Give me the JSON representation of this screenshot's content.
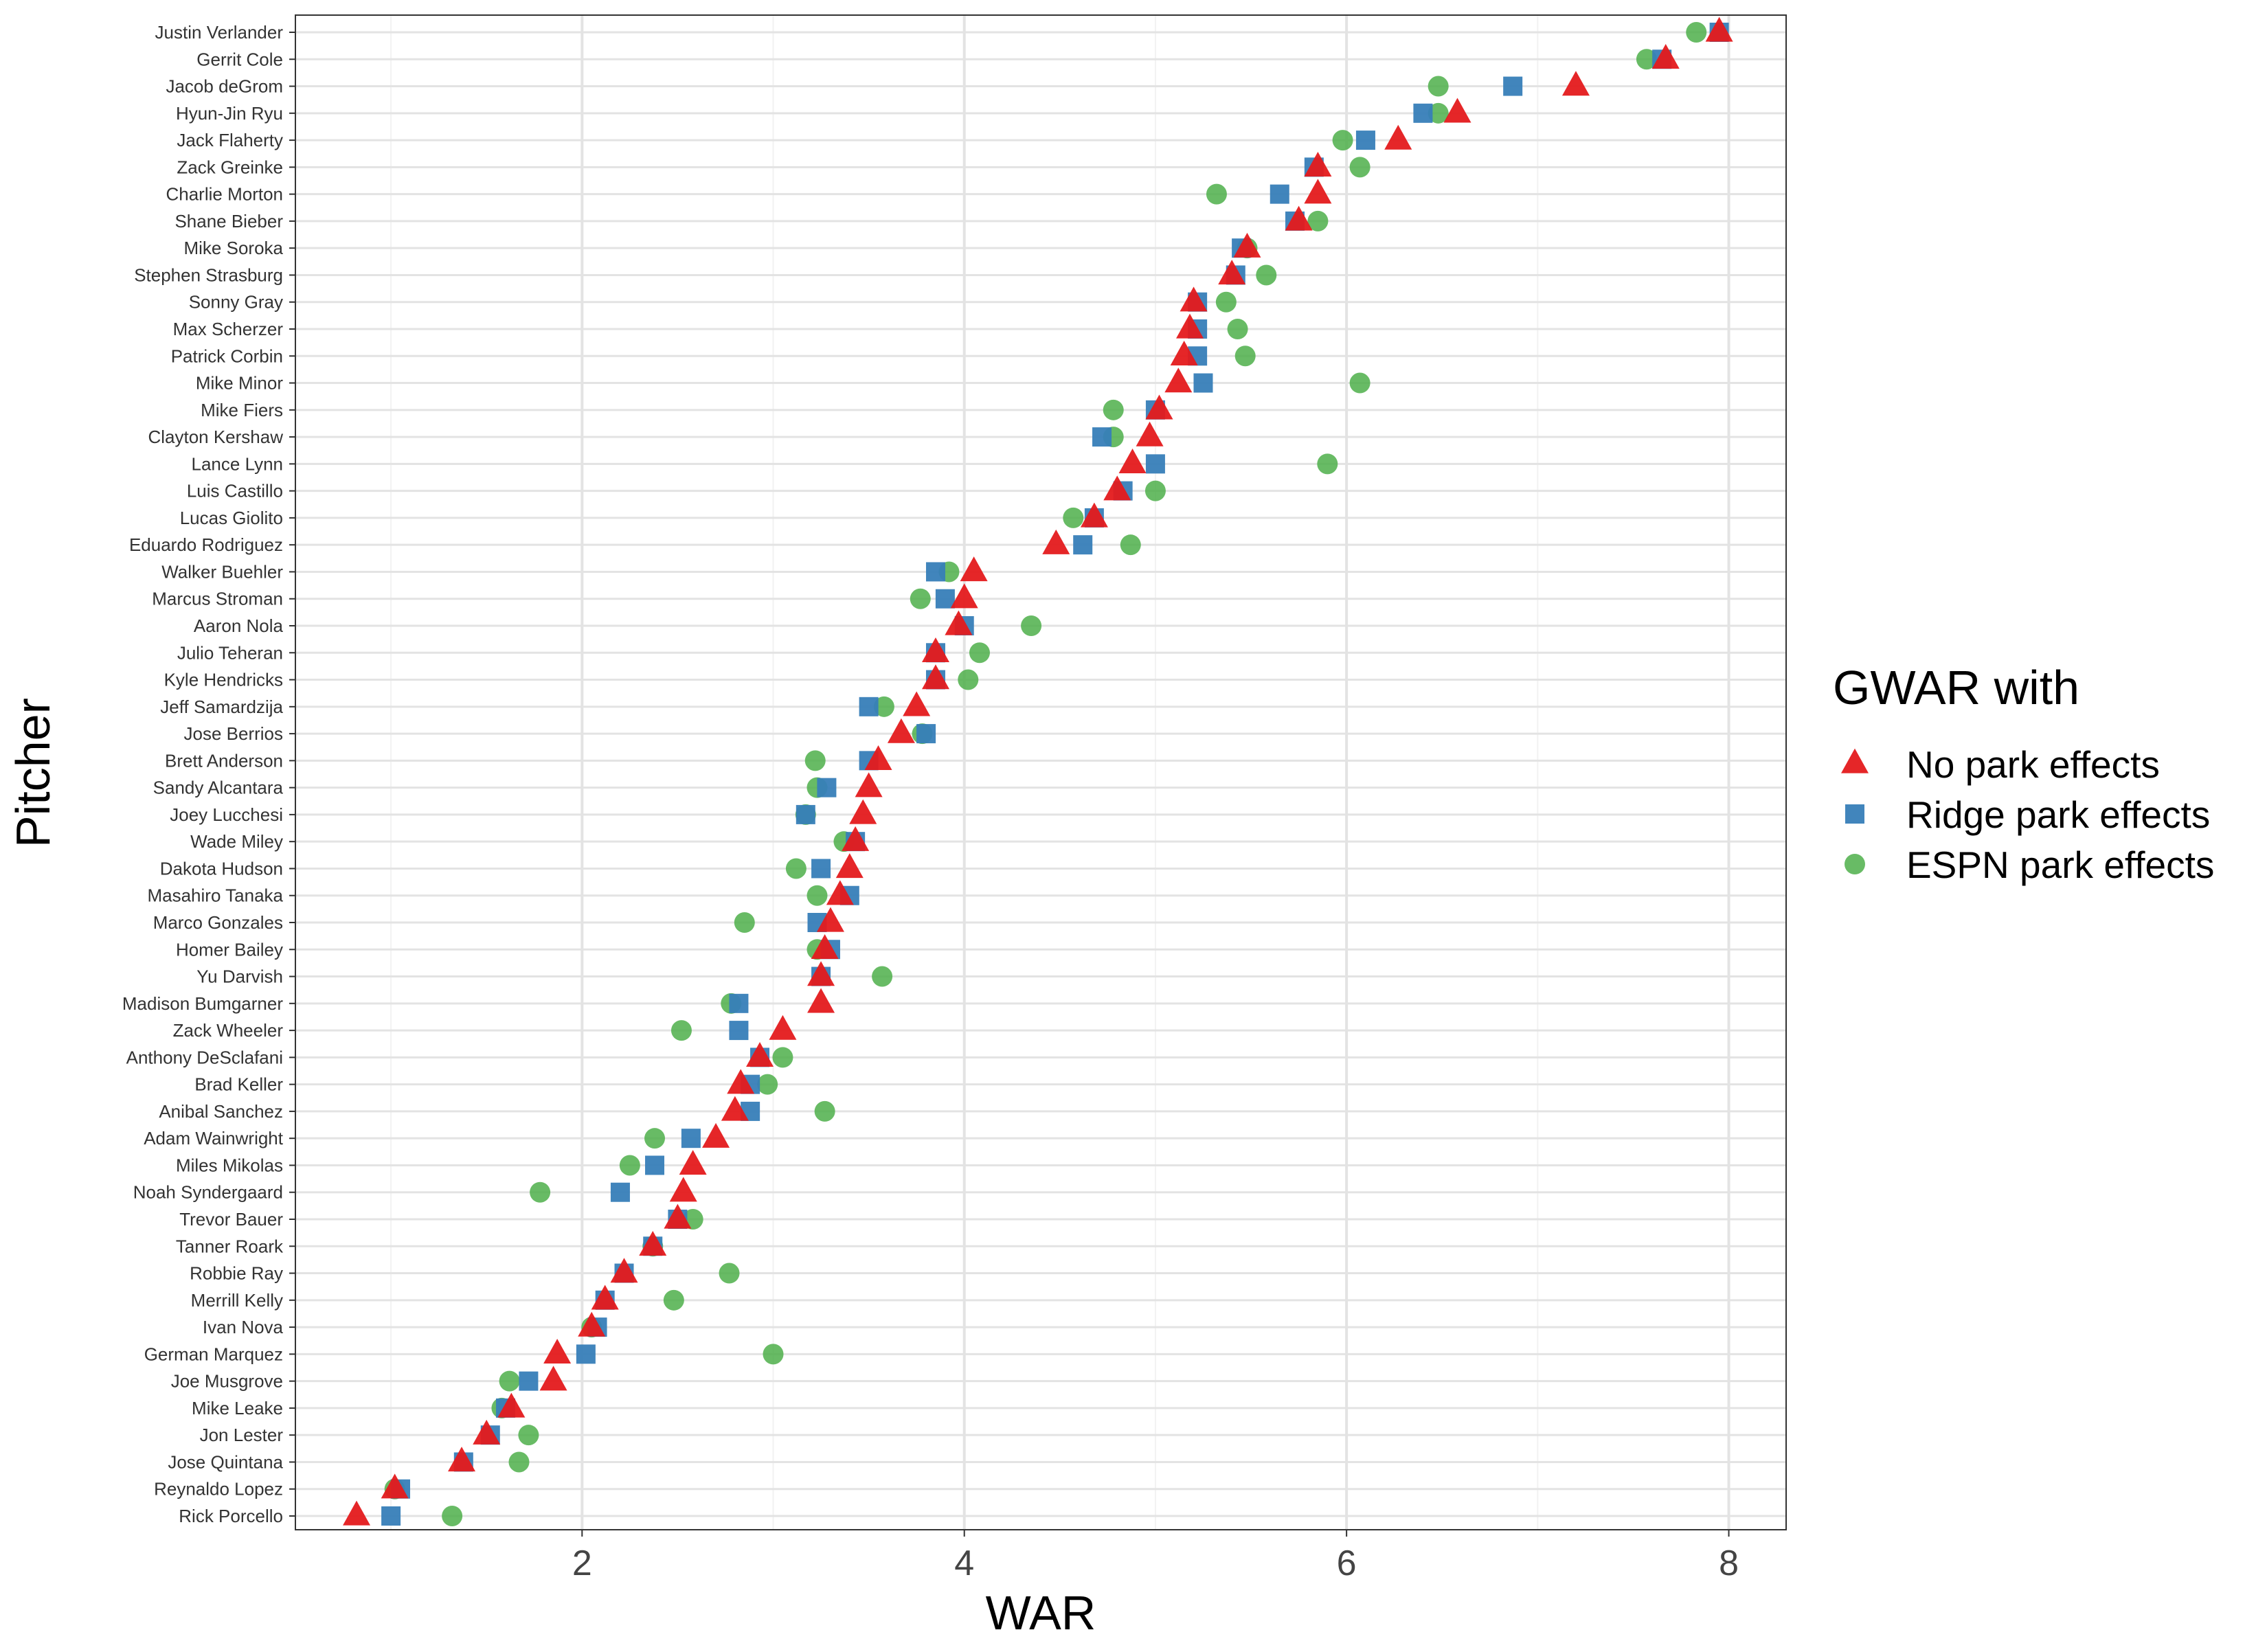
{
  "chart_data": {
    "type": "scatter",
    "xlabel": "WAR",
    "ylabel": "Pitcher",
    "xlim": [
      0.5,
      8.3
    ],
    "x_ticks": [
      2,
      4,
      6,
      8
    ],
    "grid": true,
    "legend_title": "GWAR with",
    "legend_position": "right",
    "categories": [
      "Justin Verlander",
      "Gerrit Cole",
      "Jacob deGrom",
      "Hyun-Jin Ryu",
      "Jack Flaherty",
      "Zack Greinke",
      "Charlie Morton",
      "Shane Bieber",
      "Mike Soroka",
      "Stephen Strasburg",
      "Sonny Gray",
      "Max Scherzer",
      "Patrick Corbin",
      "Mike Minor",
      "Mike Fiers",
      "Clayton Kershaw",
      "Lance Lynn",
      "Luis Castillo",
      "Lucas Giolito",
      "Eduardo Rodriguez",
      "Walker Buehler",
      "Marcus Stroman",
      "Aaron Nola",
      "Julio Teheran",
      "Kyle Hendricks",
      "Jeff Samardzija",
      "Jose Berrios",
      "Brett Anderson",
      "Sandy Alcantara",
      "Joey Lucchesi",
      "Wade Miley",
      "Dakota Hudson",
      "Masahiro Tanaka",
      "Marco Gonzales",
      "Homer Bailey",
      "Yu Darvish",
      "Madison Bumgarner",
      "Zack Wheeler",
      "Anthony DeSclafani",
      "Brad Keller",
      "Anibal Sanchez",
      "Adam Wainwright",
      "Miles Mikolas",
      "Noah Syndergaard",
      "Trevor Bauer",
      "Tanner Roark",
      "Robbie Ray",
      "Merrill Kelly",
      "Ivan Nova",
      "German Marquez",
      "Joe Musgrove",
      "Mike Leake",
      "Jon Lester",
      "Jose Quintana",
      "Reynaldo Lopez",
      "Rick Porcello"
    ],
    "series": [
      {
        "name": "No park effects",
        "color": "#E41A1C",
        "shape": "triangle",
        "values": [
          7.95,
          7.67,
          7.2,
          6.58,
          6.27,
          5.85,
          5.85,
          5.75,
          5.48,
          5.4,
          5.2,
          5.18,
          5.15,
          5.12,
          5.02,
          4.97,
          4.88,
          4.8,
          4.68,
          4.48,
          4.05,
          4.0,
          3.97,
          3.85,
          3.85,
          3.75,
          3.67,
          3.55,
          3.5,
          3.47,
          3.43,
          3.4,
          3.35,
          3.3,
          3.27,
          3.25,
          3.25,
          3.05,
          2.93,
          2.83,
          2.8,
          2.7,
          2.58,
          2.53,
          2.5,
          2.37,
          2.22,
          2.12,
          2.05,
          1.87,
          1.85,
          1.63,
          1.5,
          1.37,
          1.02,
          0.82
        ]
      },
      {
        "name": "Ridge park effects",
        "color": "#377EB8",
        "shape": "square",
        "values": [
          7.95,
          7.65,
          6.87,
          6.4,
          6.1,
          5.83,
          5.65,
          5.73,
          5.45,
          5.42,
          5.22,
          5.22,
          5.22,
          5.25,
          5.0,
          4.72,
          5.0,
          4.83,
          4.68,
          4.62,
          3.85,
          3.9,
          4.0,
          3.85,
          3.85,
          3.5,
          3.8,
          3.5,
          3.28,
          3.17,
          3.43,
          3.25,
          3.4,
          3.23,
          3.3,
          3.25,
          2.82,
          2.82,
          2.93,
          2.88,
          2.88,
          2.57,
          2.38,
          2.2,
          2.5,
          2.37,
          2.22,
          2.12,
          2.08,
          2.02,
          1.72,
          1.6,
          1.52,
          1.38,
          1.05,
          1.0
        ]
      },
      {
        "name": "ESPN park effects",
        "color": "#4DAF4A",
        "shape": "circle",
        "values": [
          7.83,
          7.57,
          6.48,
          6.48,
          5.98,
          6.07,
          5.32,
          5.85,
          5.48,
          5.58,
          5.37,
          5.43,
          5.47,
          6.07,
          4.78,
          4.78,
          5.9,
          5.0,
          4.57,
          4.87,
          3.92,
          3.77,
          4.35,
          4.08,
          4.02,
          3.58,
          3.78,
          3.22,
          3.23,
          3.17,
          3.37,
          3.12,
          3.23,
          2.85,
          3.23,
          3.57,
          2.78,
          2.52,
          3.05,
          2.97,
          3.27,
          2.38,
          2.25,
          1.78,
          2.58,
          2.37,
          2.77,
          2.48,
          2.05,
          3.0,
          1.62,
          1.58,
          1.72,
          1.67,
          1.02,
          1.32
        ]
      }
    ]
  }
}
